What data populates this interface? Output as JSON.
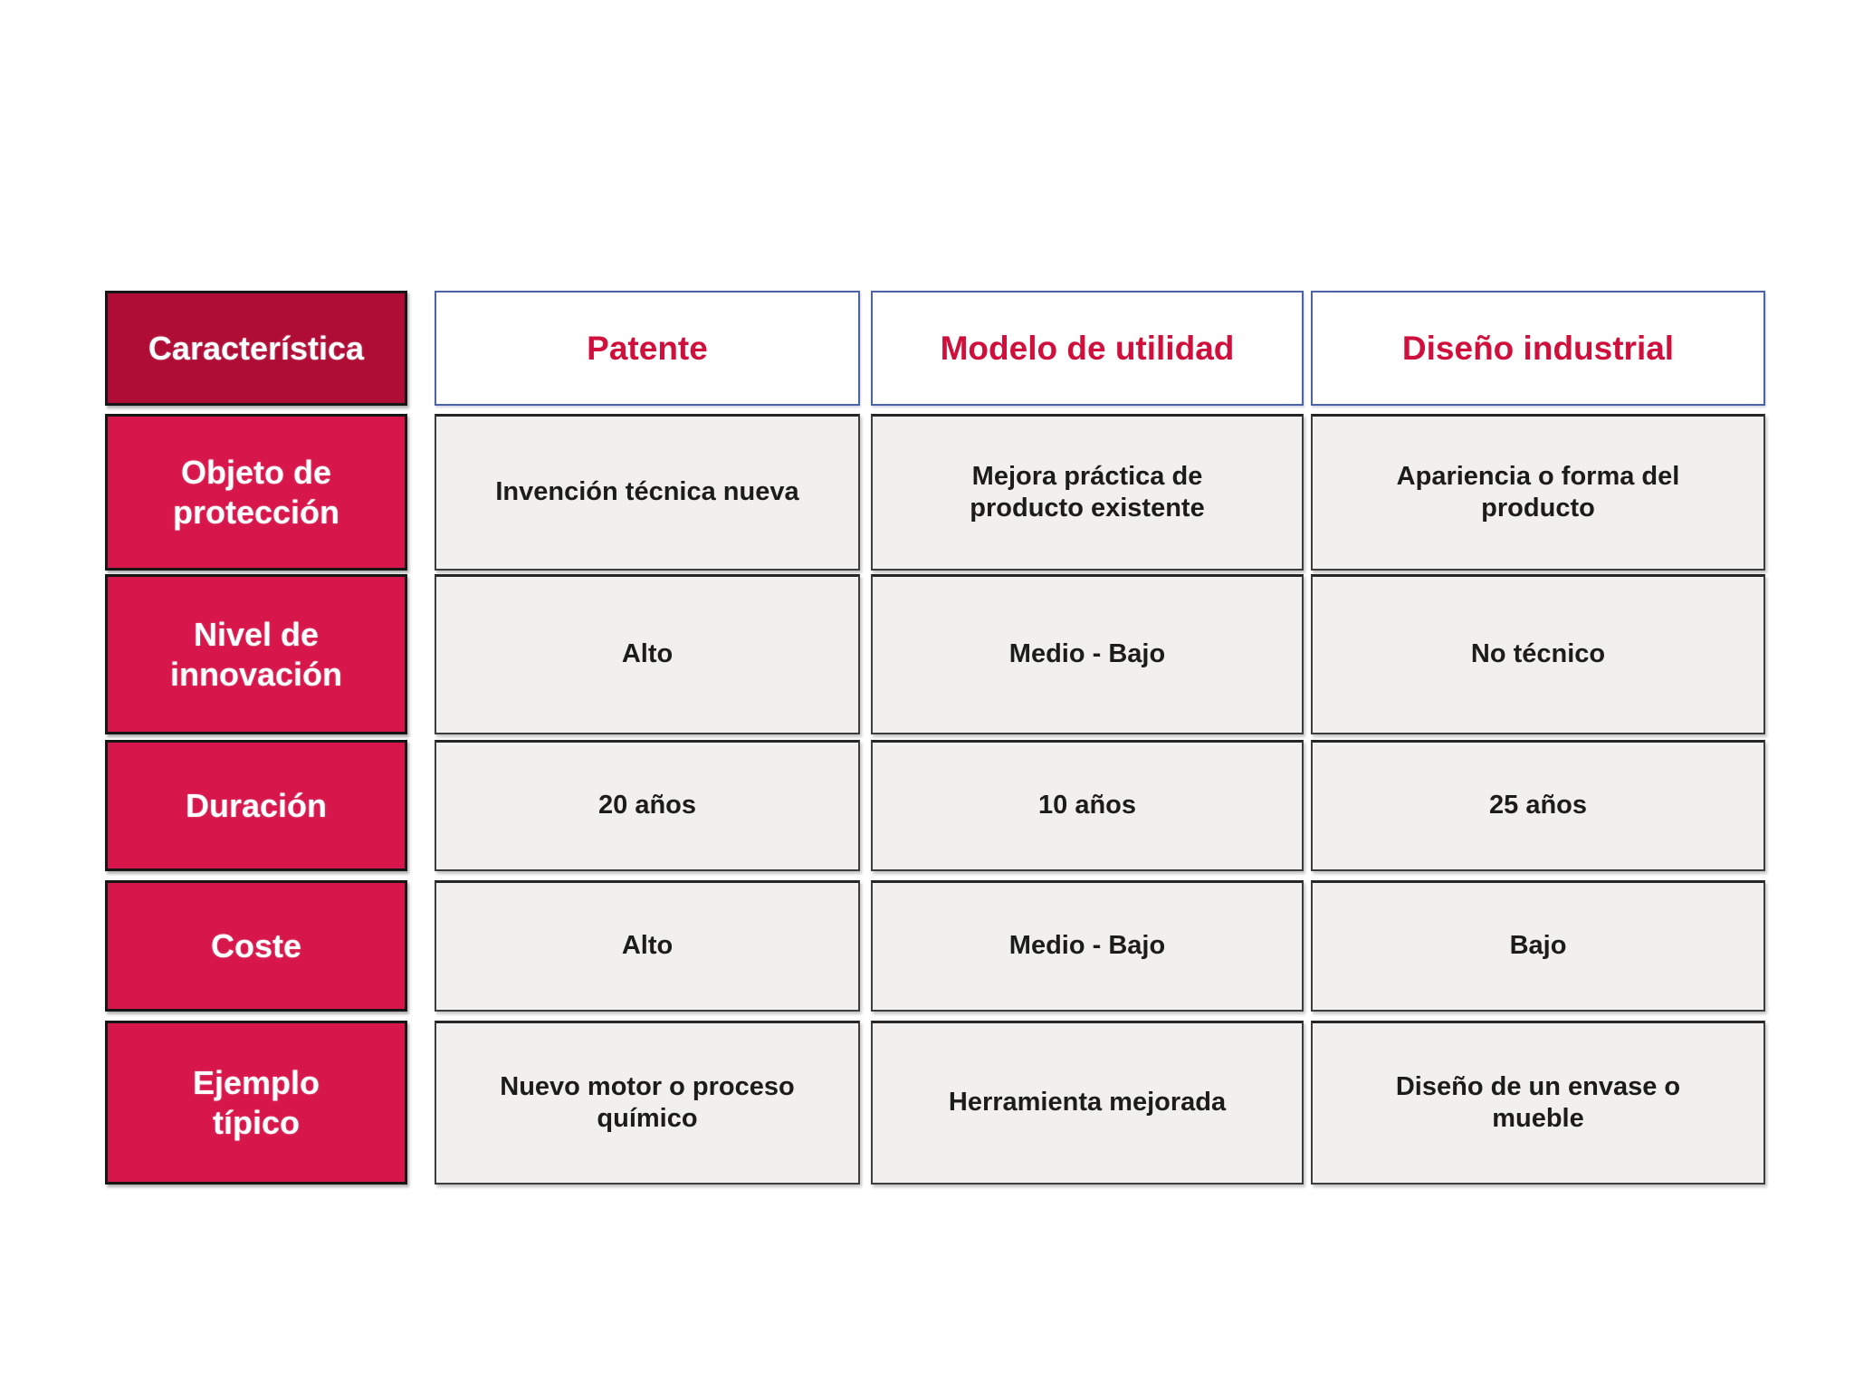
{
  "chart_data": {
    "type": "table",
    "columns": [
      "Característica",
      "Patente",
      "Modelo de utilidad",
      "Diseño industrial"
    ],
    "rows": [
      [
        "Objeto de protección",
        "Invención técnica nueva",
        "Mejora práctica de producto existente",
        "Apariencia o forma del producto"
      ],
      [
        "Nivel de innovación",
        "Alto",
        "Medio - Bajo",
        "No técnico"
      ],
      [
        "Duración",
        "20 años",
        "10 años",
        "25 años"
      ],
      [
        "Coste",
        "Alto",
        "Medio - Bajo",
        "Bajo"
      ],
      [
        "Ejemplo típico",
        "Nuevo motor o proceso químico",
        "Herramienta mejorada",
        "Diseño de un envase o mueble"
      ]
    ],
    "layout_hints": "first column crimson label cells; header row white with navy border and red text; body cells light gray"
  },
  "table": {
    "corner_header": "Característica",
    "column_headers": [
      "Patente",
      "Modelo de utilidad",
      "Diseño industrial"
    ],
    "rows": [
      {
        "label": "Objeto de\nprotección",
        "values": [
          "Invención técnica nueva",
          "Mejora práctica de\nproducto existente",
          "Apariencia o forma del\nproducto"
        ]
      },
      {
        "label": "Nivel de\ninnovación",
        "values": [
          "Alto",
          "Medio - Bajo",
          "No técnico"
        ]
      },
      {
        "label": "Duración",
        "values": [
          "20 años",
          "10 años",
          "25 años"
        ]
      },
      {
        "label": "Coste",
        "values": [
          "Alto",
          "Medio - Bajo",
          "Bajo"
        ]
      },
      {
        "label": "Ejemplo\ntípico",
        "values": [
          "Nuevo motor o proceso\nquímico",
          "Herramienta mejorada",
          "Diseño de un envase o\nmueble"
        ]
      }
    ]
  },
  "colors": {
    "corner_header_bg": "#b00d36",
    "row_label_bg": "#d7164b",
    "row_label_text": "#ffffff",
    "header_border": "#4d63a8",
    "header_text": "#d0103c",
    "data_cell_bg": "#f2f0ee",
    "data_cell_border": "#3d3d3d",
    "data_cell_text": "#1c1c1a",
    "page_bg": "#ffffff"
  }
}
